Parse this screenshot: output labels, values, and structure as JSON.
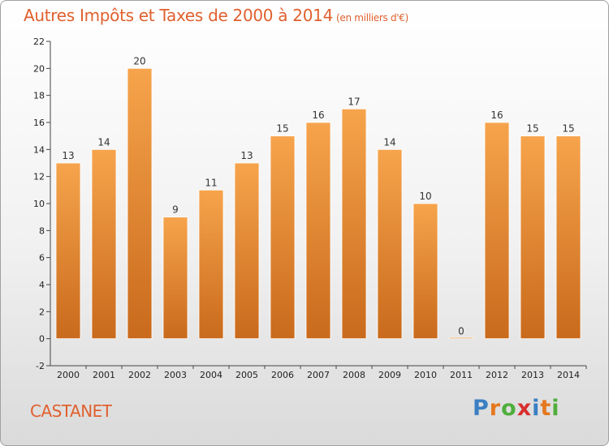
{
  "title": "Autres Impôts et Taxes de 2000 à 2014",
  "unit_note": "(en milliers d'€)",
  "commune": "CASTANET",
  "logo": {
    "text": "Proxiti",
    "letter_colors": [
      "#3a7fc2",
      "#e5781e",
      "#4fae3c",
      "#d82f2f",
      "#3a7fc2",
      "#e5781e",
      "#4fae3c"
    ]
  },
  "colors": {
    "title": "#e0602e",
    "bar_top": "#f6a44c",
    "bar_bottom": "#c96a1c"
  },
  "chart_data": {
    "type": "bar",
    "categories": [
      "2000",
      "2001",
      "2002",
      "2003",
      "2004",
      "2005",
      "2006",
      "2007",
      "2008",
      "2009",
      "2010",
      "2011",
      "2012",
      "2013",
      "2014"
    ],
    "values": [
      13,
      14,
      20,
      9,
      11,
      13,
      15,
      16,
      17,
      14,
      10,
      0,
      16,
      15,
      15
    ],
    "ylim": [
      -2,
      22
    ],
    "yticks": [
      -2,
      0,
      2,
      4,
      6,
      8,
      10,
      12,
      14,
      16,
      18,
      20,
      22
    ],
    "grid": false,
    "title": "Autres Impôts et Taxes de 2000 à 2014"
  }
}
